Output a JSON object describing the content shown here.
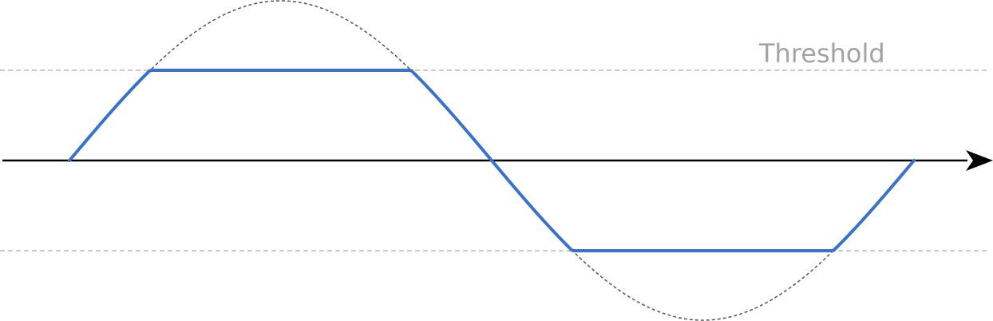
{
  "diagram": {
    "threshold_label": "Threshold"
  },
  "colors": {
    "clipped_signal": "#3a72c7",
    "original_signal": "#555555",
    "threshold_line": "#bbbbbb",
    "threshold_text": "#a0a3a8",
    "axis": "#000000"
  }
}
